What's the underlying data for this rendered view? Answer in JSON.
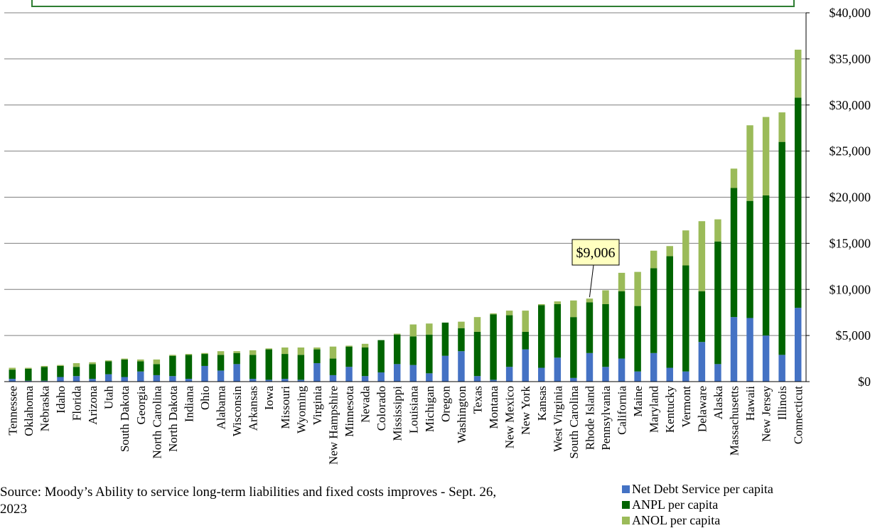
{
  "colors": {
    "net_debt": "#4472C4",
    "anpl": "#006400",
    "anol": "#9BBB59",
    "gridline": "#7f7f7f",
    "callout_fill": "#FFFFC0",
    "top_box_border": "#2E7D32"
  },
  "source_note": "Source: Moody’s Ability to service long-term liabilities and fixed costs improves - Sept. 26, 2023",
  "callout": {
    "label": "$9,006",
    "state": "Rhode Island"
  },
  "chart_data": {
    "type": "bar",
    "stacked": true,
    "categories": [
      "Tennessee",
      "Oklahoma",
      "Nebraska",
      "Idaho",
      "Florida",
      "Arizona",
      "Utah",
      "South Dakota",
      "Georgia",
      "North Carolina",
      "North Dakota",
      "Indiana",
      "Ohio",
      "Alabama",
      "Wisconsin",
      "Arkansas",
      "Iowa",
      "Missouri",
      "Wyoming",
      "Virginia",
      "New Hampshire",
      "Minnesota",
      "Nevada",
      "Colorado",
      "Mississippi",
      "Louisiana",
      "Michigan",
      "Oregon",
      "Washington",
      "Texas",
      "Montana",
      "New Mexico",
      "New York",
      "Kansas",
      "West Virginia",
      "South Carolina",
      "Rhode Island",
      "Pennsylvania",
      "California",
      "Maine",
      "Maryland",
      "Kentucky",
      "Vermont",
      "Delaware",
      "Alaska",
      "Massachusetts",
      "Hawaii",
      "New Jersey",
      "Illinois",
      "Connecticut"
    ],
    "series": [
      {
        "name": "Net Debt Service per capita",
        "color": "#4472C4",
        "values": [
          300,
          100,
          100,
          500,
          600,
          300,
          800,
          500,
          1100,
          700,
          600,
          300,
          1700,
          1200,
          1900,
          300,
          200,
          300,
          200,
          2000,
          700,
          1600,
          600,
          1000,
          1900,
          1800,
          900,
          2800,
          3300,
          600,
          200,
          1600,
          3500,
          1500,
          2600,
          400,
          3100,
          1600,
          2500,
          1100,
          3100,
          1500,
          1100,
          4300,
          1900,
          7000,
          6900,
          5000,
          2900,
          8000
        ]
      },
      {
        "name": "ANPL per capita",
        "color": "#006400",
        "values": [
          1000,
          1300,
          1500,
          1200,
          1000,
          1600,
          1400,
          1900,
          1100,
          1200,
          2200,
          2600,
          1300,
          1700,
          1200,
          2600,
          3300,
          2700,
          2700,
          1500,
          1800,
          2200,
          3100,
          3500,
          3200,
          3100,
          4200,
          3600,
          2500,
          4800,
          7100,
          5600,
          1900,
          6800,
          5800,
          6600,
          5500,
          6800,
          7300,
          7100,
          9200,
          12100,
          11500,
          5500,
          13300,
          14000,
          12700,
          15200,
          23100,
          22800
        ]
      },
      {
        "name": "ANOL per capita",
        "color": "#9BBB59",
        "values": [
          200,
          100,
          100,
          100,
          400,
          200,
          100,
          100,
          200,
          500,
          100,
          100,
          100,
          400,
          200,
          500,
          100,
          700,
          800,
          200,
          1300,
          100,
          400,
          0,
          100,
          1300,
          1200,
          0,
          700,
          1600,
          100,
          500,
          2300,
          100,
          300,
          1800,
          406,
          1500,
          2000,
          3700,
          1900,
          1100,
          3800,
          7600,
          2400,
          2100,
          8200,
          8500,
          3200,
          5200
        ]
      }
    ],
    "ylim": [
      0,
      40000
    ],
    "yticks": [
      0,
      5000,
      10000,
      15000,
      20000,
      25000,
      30000,
      35000,
      40000
    ],
    "ytick_labels": [
      "$0",
      "$5,000",
      "$10,000",
      "$15,000",
      "$20,000",
      "$25,000",
      "$30,000",
      "$35,000",
      "$40,000"
    ],
    "y_axis_side": "right",
    "grid": true,
    "legend_position": "bottom-right"
  }
}
